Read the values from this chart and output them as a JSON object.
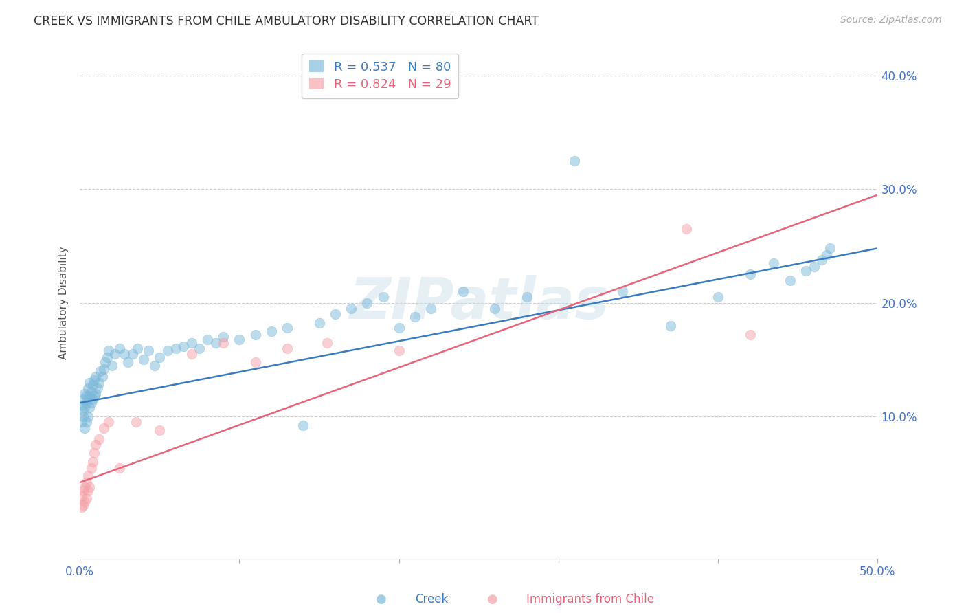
{
  "title": "CREEK VS IMMIGRANTS FROM CHILE AMBULATORY DISABILITY CORRELATION CHART",
  "source": "Source: ZipAtlas.com",
  "ylabel": "Ambulatory Disability",
  "xlim": [
    0.0,
    0.5
  ],
  "ylim": [
    -0.025,
    0.425
  ],
  "creek_color": "#7ab8d9",
  "chile_color": "#f4a0a8",
  "creek_line_color": "#3a7bbf",
  "chile_line_color": "#e8637a",
  "creek_R": 0.537,
  "creek_N": 80,
  "chile_R": 0.824,
  "chile_N": 29,
  "watermark": "ZIPatlas",
  "background_color": "#ffffff",
  "creek_x": [
    0.001,
    0.001,
    0.002,
    0.002,
    0.002,
    0.003,
    0.003,
    0.003,
    0.004,
    0.004,
    0.004,
    0.005,
    0.005,
    0.005,
    0.006,
    0.006,
    0.006,
    0.007,
    0.007,
    0.008,
    0.008,
    0.009,
    0.009,
    0.01,
    0.01,
    0.011,
    0.012,
    0.013,
    0.014,
    0.015,
    0.016,
    0.017,
    0.018,
    0.02,
    0.022,
    0.025,
    0.028,
    0.03,
    0.033,
    0.036,
    0.04,
    0.043,
    0.047,
    0.05,
    0.055,
    0.06,
    0.065,
    0.07,
    0.075,
    0.08,
    0.085,
    0.09,
    0.1,
    0.11,
    0.12,
    0.13,
    0.14,
    0.15,
    0.16,
    0.17,
    0.18,
    0.19,
    0.2,
    0.21,
    0.22,
    0.24,
    0.26,
    0.28,
    0.31,
    0.34,
    0.37,
    0.4,
    0.42,
    0.435,
    0.445,
    0.455,
    0.46,
    0.465,
    0.468,
    0.47
  ],
  "creek_y": [
    0.095,
    0.11,
    0.1,
    0.105,
    0.115,
    0.09,
    0.108,
    0.12,
    0.095,
    0.112,
    0.118,
    0.1,
    0.115,
    0.125,
    0.108,
    0.118,
    0.13,
    0.112,
    0.122,
    0.115,
    0.128,
    0.118,
    0.132,
    0.12,
    0.135,
    0.125,
    0.13,
    0.14,
    0.135,
    0.142,
    0.148,
    0.152,
    0.158,
    0.145,
    0.155,
    0.16,
    0.155,
    0.148,
    0.155,
    0.16,
    0.15,
    0.158,
    0.145,
    0.152,
    0.158,
    0.16,
    0.162,
    0.165,
    0.16,
    0.168,
    0.165,
    0.17,
    0.168,
    0.172,
    0.175,
    0.178,
    0.092,
    0.182,
    0.19,
    0.195,
    0.2,
    0.205,
    0.178,
    0.188,
    0.195,
    0.21,
    0.195,
    0.205,
    0.325,
    0.21,
    0.18,
    0.205,
    0.225,
    0.235,
    0.22,
    0.228,
    0.232,
    0.238,
    0.242,
    0.248
  ],
  "chile_x": [
    0.001,
    0.001,
    0.002,
    0.002,
    0.003,
    0.003,
    0.004,
    0.004,
    0.005,
    0.005,
    0.006,
    0.007,
    0.008,
    0.009,
    0.01,
    0.012,
    0.015,
    0.018,
    0.025,
    0.035,
    0.05,
    0.07,
    0.09,
    0.11,
    0.13,
    0.155,
    0.2,
    0.38,
    0.42
  ],
  "chile_y": [
    0.02,
    0.03,
    0.022,
    0.035,
    0.025,
    0.038,
    0.028,
    0.042,
    0.035,
    0.048,
    0.038,
    0.055,
    0.06,
    0.068,
    0.075,
    0.08,
    0.09,
    0.095,
    0.055,
    0.095,
    0.088,
    0.155,
    0.165,
    0.148,
    0.16,
    0.165,
    0.158,
    0.265,
    0.172
  ],
  "creek_line_x0": 0.0,
  "creek_line_y0": 0.112,
  "creek_line_x1": 0.5,
  "creek_line_y1": 0.248,
  "chile_line_x0": 0.0,
  "chile_line_y0": 0.042,
  "chile_line_x1": 0.5,
  "chile_line_y1": 0.295
}
